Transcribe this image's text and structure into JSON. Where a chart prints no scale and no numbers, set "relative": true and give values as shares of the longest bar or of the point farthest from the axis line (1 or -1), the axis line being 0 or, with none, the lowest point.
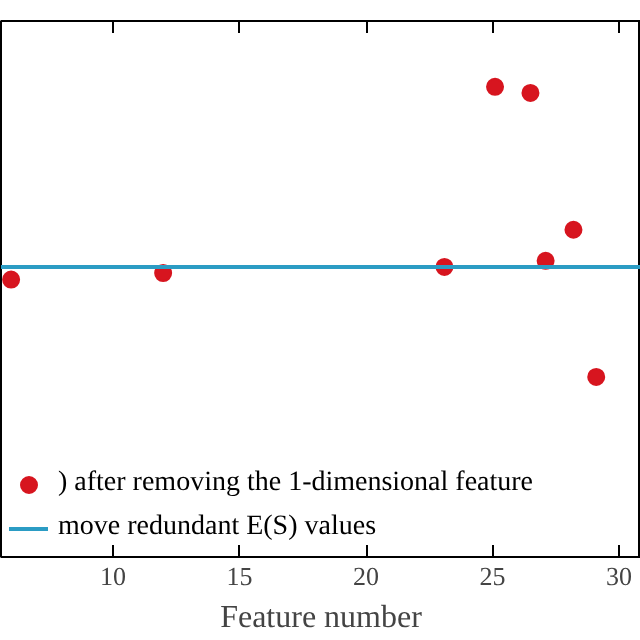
{
  "chart_data": {
    "type": "scatter",
    "xlabel": "Feature number",
    "relative": true,
    "xlim": [
      5.57,
      30.87
    ],
    "xticks": [
      10,
      15,
      20,
      25,
      30
    ],
    "legend": "bottom left",
    "grid": false,
    "tick_labels": "x",
    "series": [
      {
        "name": ") after removing the 1-dimensional feature",
        "marker": "circle",
        "color": "#d7151f",
        "x": [
          5.97,
          11.98,
          23.1,
          25.1,
          26.5,
          27.1,
          28.2,
          29.1
        ],
        "values": [
          0.59,
          0.604,
          0.617,
          1.0,
          0.987,
          0.63,
          0.696,
          0.383
        ]
      },
      {
        "name": "move redundant E(S) values",
        "type": "line",
        "color": "#2b9cc4",
        "x": [
          5.57,
          30.87
        ],
        "values": [
          0.617,
          0.617
        ]
      }
    ]
  }
}
